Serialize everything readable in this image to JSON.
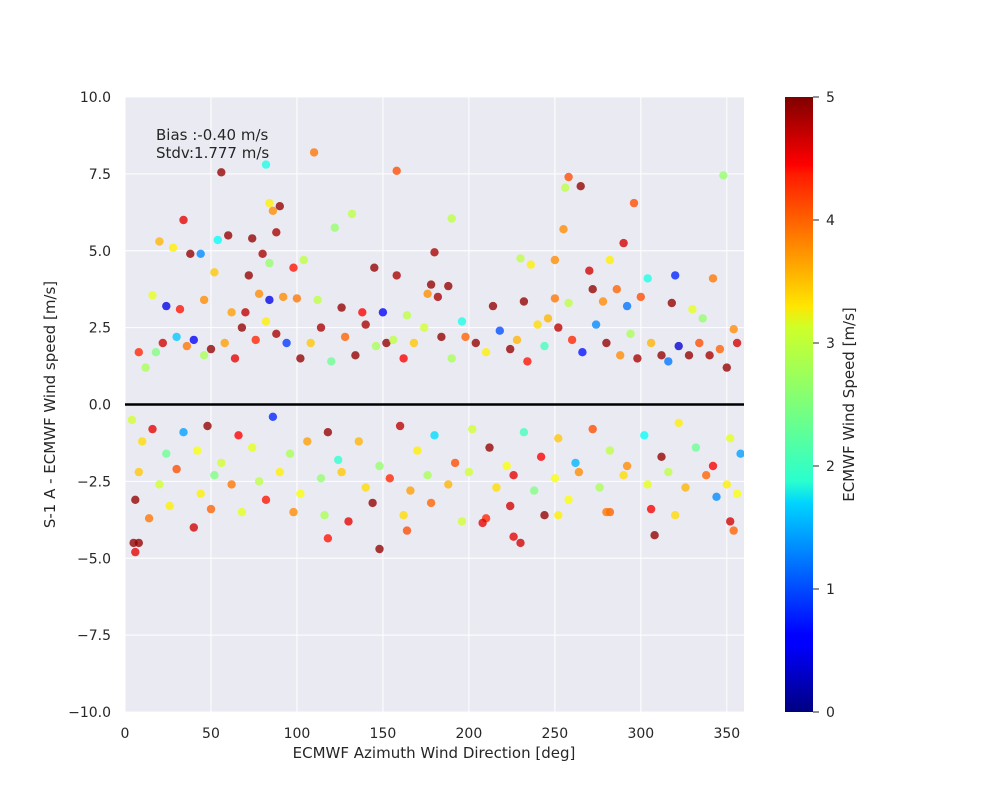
{
  "chart_data": {
    "type": "scatter",
    "title": "",
    "xlabel": "ECMWF Azimuth Wind Direction [deg]",
    "ylabel": "S-1 A - ECMWF Wind speed [m/s]",
    "xlim": [
      0,
      360
    ],
    "ylim": [
      -10,
      10
    ],
    "xticks": [
      "0",
      "50",
      "100",
      "150",
      "200",
      "250",
      "300",
      "350"
    ],
    "xtick_values": [
      0,
      50,
      100,
      150,
      200,
      250,
      300,
      350
    ],
    "yticks": [
      "−10.0",
      "−7.5",
      "−5.0",
      "−2.5",
      "0.0",
      "2.5",
      "5.0",
      "7.5",
      "10.0"
    ],
    "ytick_values": [
      -10,
      -7.5,
      -5,
      -2.5,
      0,
      2.5,
      5,
      7.5,
      10
    ],
    "grid": true,
    "background": "#eaeaf2",
    "reference_line": {
      "y": 0,
      "color": "#000000"
    },
    "annotation_lines": [
      "Bias :-0.40 m/s",
      "Stdv:1.777 m/s"
    ],
    "colorbar": {
      "label": "ECMWF Wind Speed [m/s]",
      "colormap": "jet",
      "range": [
        0,
        5
      ],
      "ticks": [
        "0",
        "1",
        "2",
        "3",
        "4",
        "5"
      ],
      "tick_values": [
        0,
        1,
        2,
        3,
        4,
        5
      ]
    },
    "points": [
      [
        158,
        7.6,
        4.0
      ],
      [
        82,
        7.8,
        2.0
      ],
      [
        110,
        8.2,
        3.8
      ],
      [
        56,
        7.55,
        4.9
      ],
      [
        258,
        7.4,
        4.0
      ],
      [
        265,
        7.1,
        4.9
      ],
      [
        256,
        7.05,
        2.8
      ],
      [
        348,
        7.45,
        2.6
      ],
      [
        84,
        6.55,
        3.2
      ],
      [
        90,
        6.45,
        4.9
      ],
      [
        86,
        6.3,
        3.7
      ],
      [
        132,
        6.2,
        2.8
      ],
      [
        34,
        6.0,
        4.5
      ],
      [
        190,
        6.05,
        2.8
      ],
      [
        296,
        6.55,
        4.0
      ],
      [
        20,
        5.3,
        3.5
      ],
      [
        28,
        5.1,
        3.2
      ],
      [
        38,
        4.9,
        4.9
      ],
      [
        44,
        4.9,
        1.3
      ],
      [
        54,
        5.35,
        1.9
      ],
      [
        60,
        5.5,
        4.9
      ],
      [
        74,
        5.4,
        4.9
      ],
      [
        88,
        5.6,
        4.8
      ],
      [
        80,
        4.9,
        4.8
      ],
      [
        84,
        4.6,
        2.6
      ],
      [
        98,
        4.45,
        4.3
      ],
      [
        104,
        4.7,
        2.8
      ],
      [
        122,
        5.75,
        2.6
      ],
      [
        145,
        4.45,
        4.9
      ],
      [
        158,
        4.2,
        4.8
      ],
      [
        178,
        3.9,
        4.9
      ],
      [
        180,
        4.95,
        4.8
      ],
      [
        230,
        4.75,
        2.8
      ],
      [
        236,
        4.55,
        3.2
      ],
      [
        250,
        4.7,
        3.7
      ],
      [
        255,
        5.7,
        3.7
      ],
      [
        270,
        4.35,
        4.6
      ],
      [
        282,
        4.7,
        3.2
      ],
      [
        290,
        5.25,
        4.6
      ],
      [
        304,
        4.1,
        2.0
      ],
      [
        320,
        4.2,
        0.8
      ],
      [
        342,
        4.1,
        3.8
      ],
      [
        52,
        4.3,
        3.4
      ],
      [
        72,
        4.2,
        4.9
      ],
      [
        16,
        3.55,
        3.0
      ],
      [
        46,
        3.4,
        3.7
      ],
      [
        70,
        3.0,
        4.7
      ],
      [
        32,
        3.1,
        4.3
      ],
      [
        24,
        3.2,
        0.5
      ],
      [
        62,
        3.0,
        3.6
      ],
      [
        78,
        3.6,
        3.7
      ],
      [
        84,
        3.4,
        0.5
      ],
      [
        92,
        3.5,
        3.7
      ],
      [
        100,
        3.45,
        3.8
      ],
      [
        112,
        3.4,
        2.8
      ],
      [
        126,
        3.15,
        4.9
      ],
      [
        138,
        3.0,
        4.4
      ],
      [
        150,
        3.0,
        0.6
      ],
      [
        164,
        2.9,
        2.8
      ],
      [
        176,
        3.6,
        3.7
      ],
      [
        182,
        3.5,
        4.8
      ],
      [
        188,
        3.85,
        4.9
      ],
      [
        196,
        2.7,
        2.0
      ],
      [
        214,
        3.2,
        4.9
      ],
      [
        232,
        3.35,
        4.9
      ],
      [
        246,
        2.8,
        3.5
      ],
      [
        250,
        3.45,
        3.8
      ],
      [
        258,
        3.3,
        2.8
      ],
      [
        272,
        3.75,
        4.9
      ],
      [
        278,
        3.35,
        3.7
      ],
      [
        286,
        3.75,
        3.9
      ],
      [
        292,
        3.2,
        1.2
      ],
      [
        300,
        3.5,
        4.0
      ],
      [
        318,
        3.3,
        4.9
      ],
      [
        330,
        3.1,
        3.0
      ],
      [
        336,
        2.8,
        2.6
      ],
      [
        354,
        2.45,
        3.7
      ],
      [
        8,
        1.7,
        4.2
      ],
      [
        12,
        1.2,
        2.7
      ],
      [
        18,
        1.7,
        2.5
      ],
      [
        22,
        2.0,
        4.6
      ],
      [
        30,
        2.2,
        1.6
      ],
      [
        36,
        1.9,
        3.8
      ],
      [
        40,
        2.1,
        0.6
      ],
      [
        46,
        1.6,
        2.7
      ],
      [
        50,
        1.8,
        4.9
      ],
      [
        58,
        2.0,
        3.6
      ],
      [
        64,
        1.5,
        4.5
      ],
      [
        68,
        2.5,
        4.9
      ],
      [
        76,
        2.1,
        4.2
      ],
      [
        82,
        2.7,
        3.2
      ],
      [
        88,
        2.3,
        4.8
      ],
      [
        94,
        2.0,
        0.9
      ],
      [
        102,
        1.5,
        4.9
      ],
      [
        108,
        2.0,
        3.4
      ],
      [
        114,
        2.5,
        4.8
      ],
      [
        120,
        1.4,
        2.4
      ],
      [
        128,
        2.2,
        3.9
      ],
      [
        134,
        1.6,
        4.9
      ],
      [
        140,
        2.6,
        4.8
      ],
      [
        146,
        1.9,
        2.7
      ],
      [
        152,
        2.0,
        4.9
      ],
      [
        156,
        2.1,
        2.8
      ],
      [
        162,
        1.5,
        4.4
      ],
      [
        168,
        2.0,
        3.4
      ],
      [
        174,
        2.5,
        2.9
      ],
      [
        184,
        2.2,
        4.9
      ],
      [
        190,
        1.5,
        2.7
      ],
      [
        198,
        2.2,
        3.9
      ],
      [
        204,
        2.0,
        4.9
      ],
      [
        210,
        1.7,
        3.2
      ],
      [
        218,
        2.4,
        1.0
      ],
      [
        224,
        1.8,
        4.9
      ],
      [
        228,
        2.1,
        3.5
      ],
      [
        234,
        1.4,
        4.3
      ],
      [
        240,
        2.6,
        3.3
      ],
      [
        244,
        1.9,
        2.2
      ],
      [
        252,
        2.5,
        4.7
      ],
      [
        260,
        2.1,
        4.2
      ],
      [
        266,
        1.7,
        0.7
      ],
      [
        274,
        2.6,
        1.3
      ],
      [
        280,
        2.0,
        4.9
      ],
      [
        288,
        1.6,
        3.7
      ],
      [
        294,
        2.3,
        2.7
      ],
      [
        298,
        1.5,
        4.8
      ],
      [
        306,
        2.0,
        3.5
      ],
      [
        312,
        1.6,
        4.9
      ],
      [
        316,
        1.4,
        1.2
      ],
      [
        322,
        1.9,
        0.4
      ],
      [
        328,
        1.6,
        4.9
      ],
      [
        334,
        2.0,
        4.0
      ],
      [
        340,
        1.6,
        4.8
      ],
      [
        346,
        1.8,
        3.9
      ],
      [
        350,
        1.2,
        4.9
      ],
      [
        356,
        2.0,
        4.6
      ],
      [
        4,
        -0.5,
        2.9
      ],
      [
        10,
        -1.2,
        3.3
      ],
      [
        16,
        -0.8,
        4.5
      ],
      [
        24,
        -1.6,
        2.4
      ],
      [
        34,
        -0.9,
        1.4
      ],
      [
        42,
        -1.5,
        3.1
      ],
      [
        48,
        -0.7,
        4.9
      ],
      [
        56,
        -1.9,
        2.9
      ],
      [
        66,
        -1.0,
        4.4
      ],
      [
        74,
        -1.4,
        3.0
      ],
      [
        86,
        -0.4,
        0.8
      ],
      [
        96,
        -1.6,
        2.7
      ],
      [
        106,
        -1.2,
        3.6
      ],
      [
        118,
        -0.9,
        4.9
      ],
      [
        124,
        -1.8,
        2.1
      ],
      [
        136,
        -1.2,
        3.5
      ],
      [
        148,
        -2.0,
        2.6
      ],
      [
        160,
        -0.7,
        4.7
      ],
      [
        170,
        -1.5,
        3.2
      ],
      [
        180,
        -1.0,
        1.7
      ],
      [
        192,
        -1.9,
        4.0
      ],
      [
        202,
        -0.8,
        2.9
      ],
      [
        212,
        -1.4,
        4.9
      ],
      [
        222,
        -2.0,
        3.1
      ],
      [
        232,
        -0.9,
        2.2
      ],
      [
        242,
        -1.7,
        4.4
      ],
      [
        252,
        -1.1,
        3.4
      ],
      [
        262,
        -1.9,
        1.5
      ],
      [
        272,
        -0.8,
        4.0
      ],
      [
        282,
        -1.5,
        2.8
      ],
      [
        292,
        -2.0,
        3.7
      ],
      [
        302,
        -1.0,
        1.9
      ],
      [
        312,
        -1.7,
        4.9
      ],
      [
        322,
        -0.6,
        3.2
      ],
      [
        332,
        -1.4,
        2.4
      ],
      [
        342,
        -2.0,
        4.4
      ],
      [
        352,
        -1.1,
        3.0
      ],
      [
        358,
        -1.6,
        1.4
      ],
      [
        8,
        -2.2,
        3.4
      ],
      [
        20,
        -2.6,
        2.9
      ],
      [
        30,
        -2.1,
        4.0
      ],
      [
        44,
        -2.9,
        3.2
      ],
      [
        52,
        -2.3,
        2.5
      ],
      [
        62,
        -2.6,
        3.8
      ],
      [
        78,
        -2.5,
        2.8
      ],
      [
        90,
        -2.2,
        3.2
      ],
      [
        102,
        -2.9,
        3.1
      ],
      [
        114,
        -2.4,
        2.6
      ],
      [
        126,
        -2.2,
        3.4
      ],
      [
        140,
        -2.7,
        3.3
      ],
      [
        154,
        -2.4,
        4.2
      ],
      [
        166,
        -2.8,
        3.6
      ],
      [
        176,
        -2.3,
        2.7
      ],
      [
        188,
        -2.6,
        3.5
      ],
      [
        200,
        -2.2,
        2.9
      ],
      [
        216,
        -2.7,
        3.3
      ],
      [
        226,
        -2.3,
        4.5
      ],
      [
        238,
        -2.8,
        2.5
      ],
      [
        250,
        -2.4,
        3.1
      ],
      [
        264,
        -2.2,
        3.7
      ],
      [
        276,
        -2.7,
        2.7
      ],
      [
        290,
        -2.3,
        3.3
      ],
      [
        304,
        -2.6,
        3.0
      ],
      [
        316,
        -2.2,
        2.8
      ],
      [
        326,
        -2.7,
        3.5
      ],
      [
        338,
        -2.3,
        3.9
      ],
      [
        350,
        -2.6,
        3.2
      ],
      [
        356,
        -2.9,
        3.1
      ],
      [
        6,
        -3.1,
        4.9
      ],
      [
        14,
        -3.7,
        3.8
      ],
      [
        26,
        -3.3,
        3.2
      ],
      [
        40,
        -4.0,
        4.6
      ],
      [
        50,
        -3.4,
        3.9
      ],
      [
        68,
        -3.5,
        3.0
      ],
      [
        82,
        -3.1,
        4.3
      ],
      [
        98,
        -3.5,
        3.7
      ],
      [
        116,
        -3.6,
        2.7
      ],
      [
        130,
        -3.8,
        4.5
      ],
      [
        144,
        -3.2,
        4.9
      ],
      [
        162,
        -3.6,
        3.3
      ],
      [
        178,
        -3.2,
        3.9
      ],
      [
        196,
        -3.8,
        2.9
      ],
      [
        210,
        -3.7,
        4.2
      ],
      [
        224,
        -3.3,
        4.6
      ],
      [
        244,
        -3.6,
        4.9
      ],
      [
        258,
        -3.1,
        3.1
      ],
      [
        282,
        -3.5,
        3.9
      ],
      [
        306,
        -3.4,
        4.4
      ],
      [
        320,
        -3.6,
        3.3
      ],
      [
        344,
        -3.0,
        1.3
      ],
      [
        352,
        -3.8,
        4.6
      ],
      [
        354,
        -4.1,
        3.9
      ],
      [
        5,
        -4.5,
        4.9
      ],
      [
        8,
        -4.5,
        4.9
      ],
      [
        6,
        -4.8,
        4.5
      ],
      [
        148,
        -4.7,
        4.9
      ],
      [
        118,
        -4.35,
        4.3
      ],
      [
        164,
        -4.1,
        4.0
      ],
      [
        226,
        -4.3,
        4.5
      ],
      [
        230,
        -4.5,
        4.6
      ],
      [
        308,
        -4.25,
        4.9
      ],
      [
        208,
        -3.85,
        4.5
      ],
      [
        252,
        -3.6,
        3.2
      ],
      [
        280,
        -3.5,
        3.8
      ]
    ]
  }
}
